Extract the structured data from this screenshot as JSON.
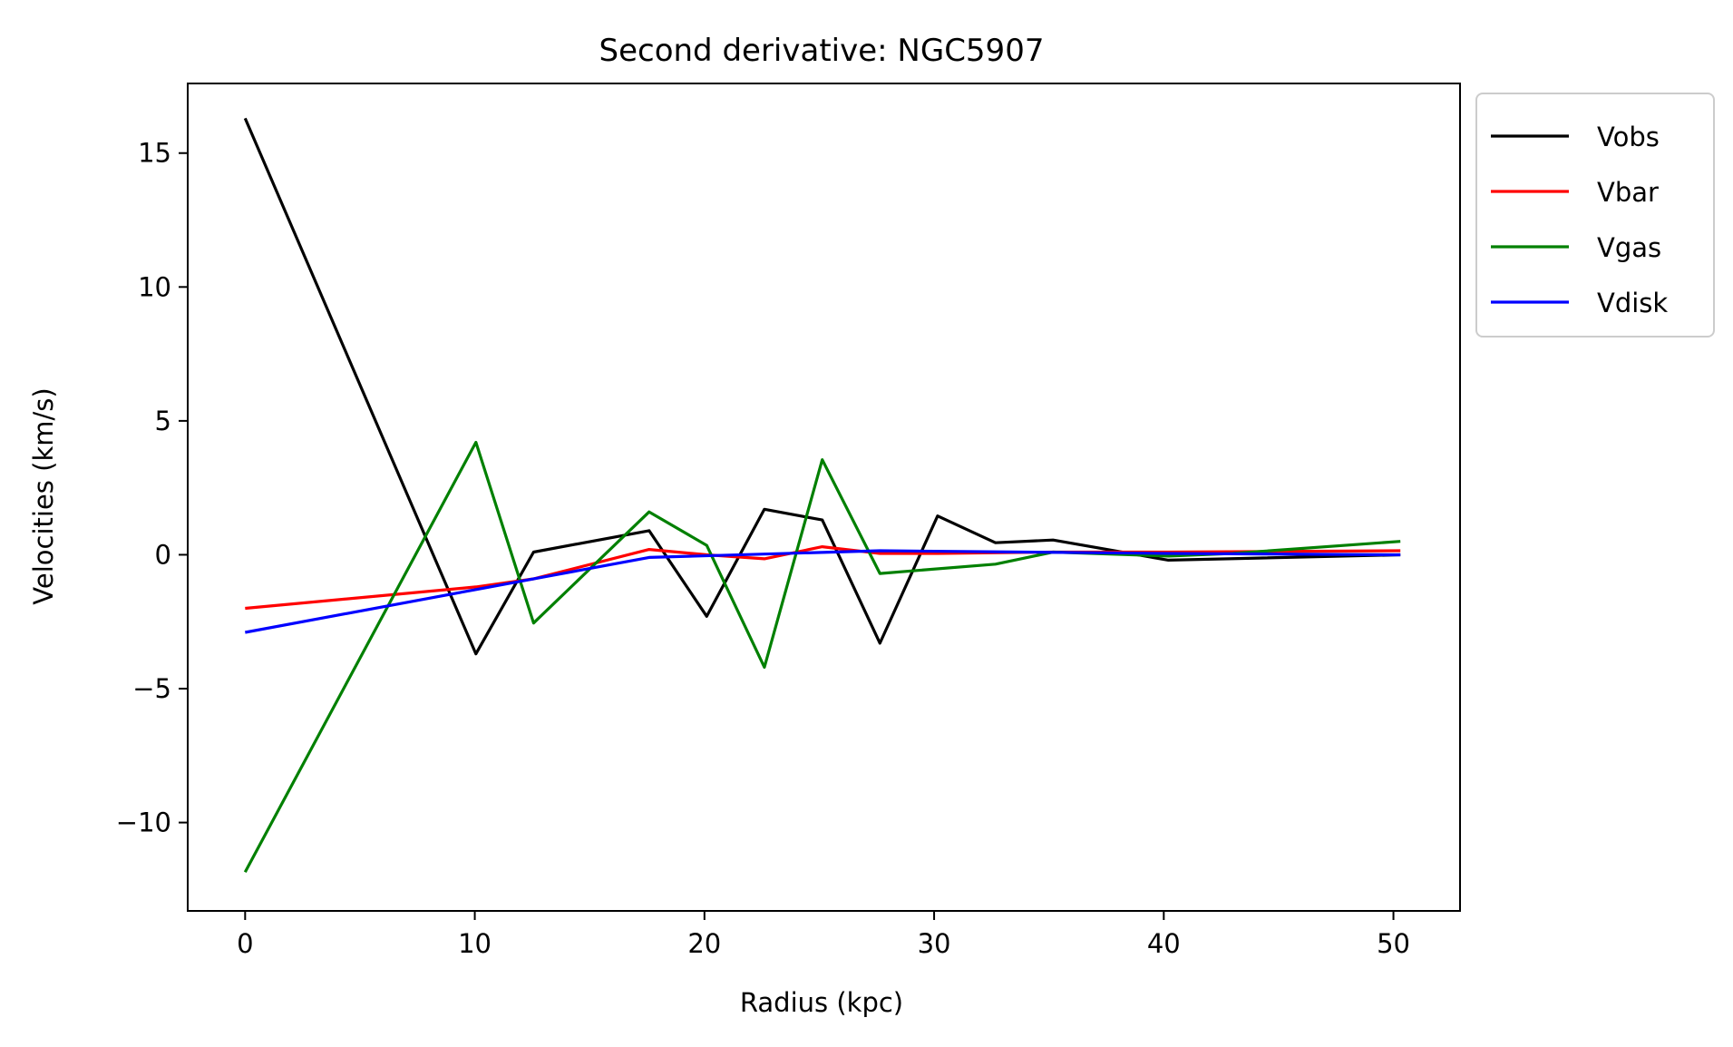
{
  "chart_data": {
    "type": "line",
    "title": "Second derivative: NGC5907",
    "xlabel": "Radius (kpc)",
    "ylabel": "Velocities (km/s)",
    "xlim": [
      -2.5,
      52.9
    ],
    "ylim": [
      -13.3,
      17.6
    ],
    "x_ticks": [
      0,
      10,
      20,
      30,
      40,
      50
    ],
    "x_tick_labels": [
      "0",
      "10",
      "20",
      "30",
      "40",
      "50"
    ],
    "y_ticks": [
      -10,
      -5,
      0,
      5,
      10,
      15
    ],
    "y_tick_labels": [
      "−10",
      "−5",
      "0",
      "5",
      "10",
      "15"
    ],
    "grid": false,
    "legend_position": "outside-top-right",
    "series": [
      {
        "name": "Vobs",
        "color": "#000000",
        "x": [
          0,
          10.05,
          12.56,
          17.59,
          20.1,
          22.61,
          25.13,
          27.64,
          30.15,
          32.67,
          35.18,
          40.2,
          50.3
        ],
        "y": [
          16.3,
          -3.7,
          0.1,
          0.9,
          -2.3,
          1.7,
          1.3,
          -3.3,
          1.45,
          0.45,
          0.55,
          -0.2,
          0.0
        ]
      },
      {
        "name": "Vbar",
        "color": "#ff0000",
        "x": [
          0,
          10.05,
          12.56,
          17.59,
          20.1,
          22.61,
          25.13,
          27.64,
          30.15,
          35.18,
          40.2,
          50.3
        ],
        "y": [
          -2.0,
          -1.2,
          -0.9,
          0.2,
          0.0,
          -0.15,
          0.3,
          0.05,
          0.05,
          0.1,
          0.1,
          0.15
        ]
      },
      {
        "name": "Vgas",
        "color": "#008000",
        "x": [
          0,
          10.05,
          12.56,
          17.59,
          20.1,
          22.61,
          25.13,
          27.64,
          32.67,
          35.18,
          40.2,
          43.0,
          50.3
        ],
        "y": [
          -11.85,
          4.2,
          -2.55,
          1.6,
          0.35,
          -4.2,
          3.55,
          -0.7,
          -0.35,
          0.1,
          -0.05,
          0.05,
          0.5
        ]
      },
      {
        "name": "Vdisk",
        "color": "#0000ff",
        "x": [
          0,
          10.05,
          17.59,
          27.64,
          40.2,
          50.3
        ],
        "y": [
          -2.9,
          -1.3,
          -0.1,
          0.15,
          0.05,
          0.0
        ]
      }
    ]
  }
}
